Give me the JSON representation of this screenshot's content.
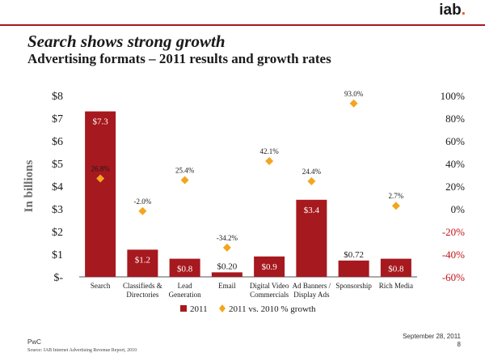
{
  "brand": {
    "logo_text": "iab",
    "logo_dot": "."
  },
  "slide": {
    "title": "Search shows strong growth",
    "subtitle": "Advertising formats – 2011 results and growth rates"
  },
  "footer": {
    "left": "PwC",
    "source": "Source: IAB Internet Advertising Revenue Report, 2010",
    "date": "September 28, 2011",
    "page": "8"
  },
  "chart_data": {
    "type": "bar",
    "categories": [
      [
        "Search"
      ],
      [
        "Classifieds &",
        "Directories"
      ],
      [
        "Lead",
        "Generation"
      ],
      [
        "Email"
      ],
      [
        "Digital Video",
        "Commercials"
      ],
      [
        "Ad Banners /",
        "Display Ads"
      ],
      [
        "Sponsorship"
      ],
      [
        "Rich Media"
      ]
    ],
    "series": [
      {
        "name": "2011",
        "type": "bar",
        "axis": "left",
        "values": [
          7.3,
          1.2,
          0.8,
          0.2,
          0.9,
          3.4,
          0.72,
          0.8
        ],
        "labels": [
          "$7.3",
          "$1.2",
          "$0.8",
          "$0.20",
          "$0.9",
          "$3.4",
          "$0.72",
          "$0.8"
        ],
        "color": "#a6191e"
      },
      {
        "name": "2011 vs. 2010 % growth",
        "type": "scatter",
        "axis": "right",
        "values": [
          26.8,
          -2.0,
          25.4,
          -34.2,
          42.1,
          24.4,
          93.0,
          2.7
        ],
        "labels": [
          "26.8%",
          "-2.0%",
          "25.4%",
          "-34.2%",
          "42.1%",
          "24.4%",
          "93.0%",
          "2.7%"
        ],
        "color": "#f3a51f"
      }
    ],
    "ylabel": "In billions",
    "ylim": [
      0,
      8
    ],
    "yticks": [
      "$-",
      "$1",
      "$2",
      "$3",
      "$4",
      "$5",
      "$6",
      "$7",
      "$8"
    ],
    "y2lim": [
      -60,
      100
    ],
    "y2ticks": [
      "100%",
      "80%",
      "60%",
      "40%",
      "20%",
      "0%",
      "-20%",
      "-40%",
      "-60%"
    ],
    "y2tick_colors": {
      "negative": "#c0141a",
      "positive": "#1a1a1a"
    },
    "legend": "bottom",
    "grid": false
  }
}
